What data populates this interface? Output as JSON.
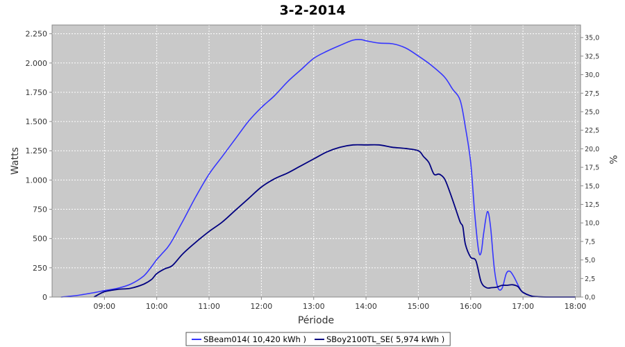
{
  "chart_data": {
    "type": "line",
    "title": "3-2-2014",
    "xlabel": "Période",
    "ylabel": "Watts",
    "y2label": "%",
    "xlim": [
      8.0,
      18.1
    ],
    "ylim": [
      0,
      2325
    ],
    "y2lim": [
      0,
      36.7
    ],
    "x_ticks": [
      {
        "v": 9,
        "label": "09:00"
      },
      {
        "v": 10,
        "label": "10:00"
      },
      {
        "v": 11,
        "label": "11:00"
      },
      {
        "v": 12,
        "label": "12:00"
      },
      {
        "v": 13,
        "label": "13:00"
      },
      {
        "v": 14,
        "label": "14:00"
      },
      {
        "v": 15,
        "label": "15:00"
      },
      {
        "v": 16,
        "label": "16:00"
      },
      {
        "v": 17,
        "label": "17:00"
      },
      {
        "v": 18,
        "label": "18:00"
      }
    ],
    "y_ticks": [
      {
        "v": 0,
        "label": "0"
      },
      {
        "v": 250,
        "label": "250"
      },
      {
        "v": 500,
        "label": "500"
      },
      {
        "v": 750,
        "label": "750"
      },
      {
        "v": 1000,
        "label": "1.000"
      },
      {
        "v": 1250,
        "label": "1.250"
      },
      {
        "v": 1500,
        "label": "1.500"
      },
      {
        "v": 1750,
        "label": "1.750"
      },
      {
        "v": 2000,
        "label": "2.000"
      },
      {
        "v": 2250,
        "label": "2.250"
      }
    ],
    "y2_ticks": [
      {
        "v": 0,
        "label": "0,0"
      },
      {
        "v": 2.5,
        "label": "2,5"
      },
      {
        "v": 5,
        "label": "5,0"
      },
      {
        "v": 7.5,
        "label": "7,5"
      },
      {
        "v": 10,
        "label": "10,0"
      },
      {
        "v": 12.5,
        "label": "12,5"
      },
      {
        "v": 15,
        "label": "15,0"
      },
      {
        "v": 17.5,
        "label": "17,5"
      },
      {
        "v": 20,
        "label": "20,0"
      },
      {
        "v": 22.5,
        "label": "22,5"
      },
      {
        "v": 25,
        "label": "25,0"
      },
      {
        "v": 27.5,
        "label": "27,5"
      },
      {
        "v": 30,
        "label": "30,0"
      },
      {
        "v": 32.5,
        "label": "32,5"
      },
      {
        "v": 35,
        "label": "35,0"
      }
    ],
    "grid": true,
    "legend_position": "bottom",
    "colors": {
      "plot_bg": "#c9c9c9",
      "grid": "#ffffff",
      "axis": "#888888"
    },
    "series": [
      {
        "name": "SBeam014( 10,420 kWh )",
        "color": "#3535ff",
        "points": [
          [
            8.17,
            0
          ],
          [
            8.5,
            15
          ],
          [
            8.83,
            40
          ],
          [
            9.0,
            55
          ],
          [
            9.25,
            75
          ],
          [
            9.5,
            110
          ],
          [
            9.75,
            180
          ],
          [
            9.9,
            260
          ],
          [
            10.0,
            320
          ],
          [
            10.1,
            370
          ],
          [
            10.25,
            450
          ],
          [
            10.5,
            650
          ],
          [
            10.75,
            860
          ],
          [
            11.0,
            1050
          ],
          [
            11.25,
            1200
          ],
          [
            11.5,
            1350
          ],
          [
            11.75,
            1500
          ],
          [
            12.0,
            1620
          ],
          [
            12.25,
            1720
          ],
          [
            12.5,
            1840
          ],
          [
            12.75,
            1940
          ],
          [
            13.0,
            2040
          ],
          [
            13.25,
            2100
          ],
          [
            13.5,
            2150
          ],
          [
            13.75,
            2195
          ],
          [
            13.9,
            2200
          ],
          [
            14.0,
            2190
          ],
          [
            14.25,
            2170
          ],
          [
            14.5,
            2165
          ],
          [
            14.75,
            2130
          ],
          [
            15.0,
            2060
          ],
          [
            15.25,
            1980
          ],
          [
            15.5,
            1880
          ],
          [
            15.65,
            1780
          ],
          [
            15.8,
            1680
          ],
          [
            15.9,
            1450
          ],
          [
            16.0,
            1150
          ],
          [
            16.08,
            700
          ],
          [
            16.15,
            400
          ],
          [
            16.2,
            380
          ],
          [
            16.25,
            550
          ],
          [
            16.32,
            730
          ],
          [
            16.38,
            600
          ],
          [
            16.45,
            250
          ],
          [
            16.52,
            80
          ],
          [
            16.6,
            75
          ],
          [
            16.68,
            200
          ],
          [
            16.75,
            220
          ],
          [
            16.83,
            170
          ],
          [
            16.92,
            90
          ],
          [
            17.0,
            40
          ],
          [
            17.2,
            5
          ],
          [
            17.5,
            0
          ],
          [
            18.0,
            0
          ]
        ]
      },
      {
        "name": "SBoy2100TL_SE( 5,974 kWh )",
        "color": "#000080",
        "points": [
          [
            8.8,
            0
          ],
          [
            9.0,
            45
          ],
          [
            9.25,
            65
          ],
          [
            9.5,
            75
          ],
          [
            9.75,
            110
          ],
          [
            9.9,
            150
          ],
          [
            10.0,
            200
          ],
          [
            10.15,
            240
          ],
          [
            10.3,
            270
          ],
          [
            10.5,
            370
          ],
          [
            10.75,
            470
          ],
          [
            11.0,
            560
          ],
          [
            11.25,
            640
          ],
          [
            11.5,
            740
          ],
          [
            11.75,
            840
          ],
          [
            12.0,
            940
          ],
          [
            12.25,
            1010
          ],
          [
            12.5,
            1060
          ],
          [
            12.75,
            1120
          ],
          [
            13.0,
            1180
          ],
          [
            13.25,
            1240
          ],
          [
            13.5,
            1280
          ],
          [
            13.75,
            1300
          ],
          [
            14.0,
            1300
          ],
          [
            14.25,
            1300
          ],
          [
            14.5,
            1280
          ],
          [
            14.75,
            1270
          ],
          [
            15.0,
            1250
          ],
          [
            15.1,
            1200
          ],
          [
            15.2,
            1150
          ],
          [
            15.3,
            1050
          ],
          [
            15.4,
            1050
          ],
          [
            15.5,
            1010
          ],
          [
            15.6,
            900
          ],
          [
            15.7,
            770
          ],
          [
            15.8,
            640
          ],
          [
            15.85,
            600
          ],
          [
            15.9,
            450
          ],
          [
            16.0,
            340
          ],
          [
            16.1,
            310
          ],
          [
            16.2,
            130
          ],
          [
            16.3,
            80
          ],
          [
            16.4,
            80
          ],
          [
            16.5,
            85
          ],
          [
            16.6,
            100
          ],
          [
            16.7,
            100
          ],
          [
            16.8,
            105
          ],
          [
            16.9,
            90
          ],
          [
            17.0,
            40
          ],
          [
            17.2,
            5
          ],
          [
            17.5,
            0
          ],
          [
            18.0,
            0
          ]
        ]
      }
    ]
  }
}
